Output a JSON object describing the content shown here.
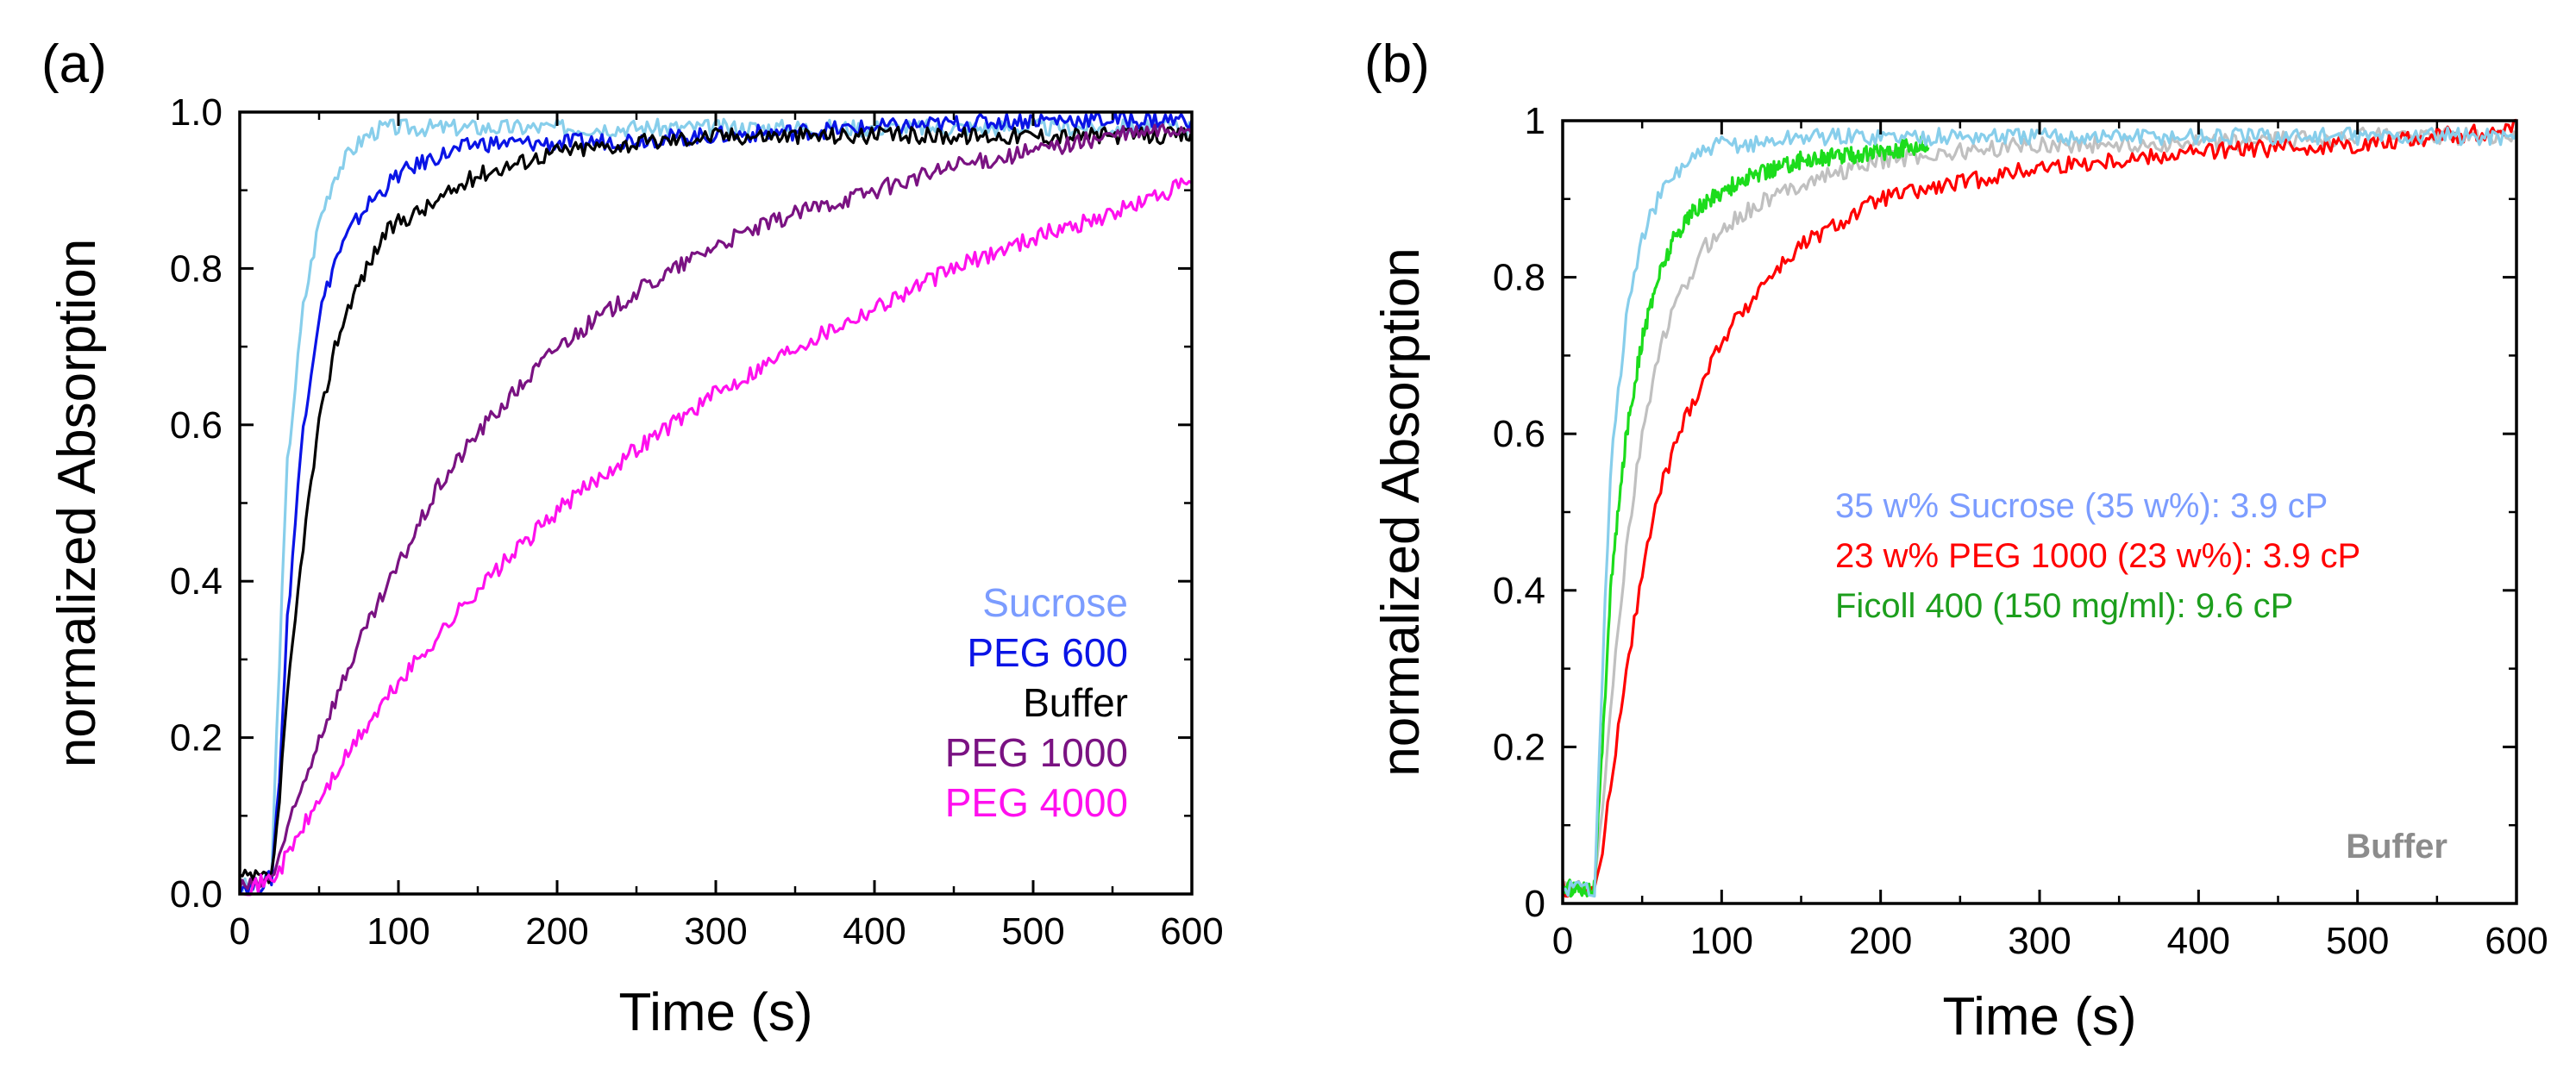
{
  "chart_data": [
    {
      "panel_label": "(a)",
      "type": "line",
      "xlabel": "Time (s)",
      "ylabel": "normalized Absorption",
      "xlim": [
        0,
        600
      ],
      "ylim": [
        0,
        1
      ],
      "xticks": [
        0,
        100,
        200,
        300,
        400,
        500,
        600
      ],
      "xtick_labels": [
        "0",
        "100",
        "200",
        "300",
        "400",
        "500",
        "600"
      ],
      "yticks": [
        0,
        0.2,
        0.4,
        0.6,
        0.8,
        1.0
      ],
      "ytick_labels": [
        "0.0",
        "0.2",
        "0.4",
        "0.6",
        "0.8",
        "1.0"
      ],
      "legend_position": "bottom-right",
      "series": [
        {
          "name": "Sucrose",
          "color": "#87CEEB",
          "legend_color": "#7b9cff",
          "x": [
            0,
            10,
            20,
            25,
            30,
            40,
            50,
            60,
            70,
            80,
            90,
            100,
            120,
            150,
            200,
            300,
            400,
            500,
            600
          ],
          "y": [
            0.01,
            0.01,
            0.02,
            0.3,
            0.55,
            0.75,
            0.86,
            0.92,
            0.95,
            0.97,
            0.98,
            0.98,
            0.98,
            0.98,
            0.98,
            0.98,
            0.98,
            0.98,
            0.98
          ]
        },
        {
          "name": "PEG 600",
          "color": "#0a14e6",
          "legend_color": "#0a14e6",
          "x": [
            0,
            10,
            20,
            25,
            30,
            40,
            50,
            60,
            70,
            80,
            90,
            100,
            120,
            150,
            200,
            300,
            400,
            500,
            600
          ],
          "y": [
            0.01,
            0.01,
            0.02,
            0.15,
            0.35,
            0.6,
            0.74,
            0.81,
            0.85,
            0.88,
            0.9,
            0.92,
            0.94,
            0.96,
            0.96,
            0.97,
            0.98,
            0.99,
            0.99
          ]
        },
        {
          "name": "Buffer",
          "color": "#000000",
          "legend_color": "#000000",
          "x": [
            0,
            10,
            20,
            25,
            30,
            40,
            50,
            60,
            70,
            80,
            90,
            100,
            120,
            150,
            200,
            250,
            300,
            400,
            500,
            600
          ],
          "y": [
            0.02,
            0.02,
            0.02,
            0.12,
            0.25,
            0.45,
            0.6,
            0.7,
            0.76,
            0.8,
            0.84,
            0.86,
            0.88,
            0.92,
            0.95,
            0.96,
            0.97,
            0.97,
            0.97,
            0.97
          ]
        },
        {
          "name": "PEG 1000",
          "color": "#7a1282",
          "legend_color": "#7a1282",
          "x": [
            0,
            10,
            20,
            25,
            30,
            50,
            75,
            100,
            125,
            150,
            200,
            250,
            300,
            350,
            400,
            450,
            500,
            550,
            600
          ],
          "y": [
            0.01,
            0.01,
            0.02,
            0.05,
            0.08,
            0.2,
            0.32,
            0.42,
            0.52,
            0.59,
            0.7,
            0.77,
            0.83,
            0.87,
            0.9,
            0.93,
            0.95,
            0.97,
            0.98
          ]
        },
        {
          "name": "PEG 4000",
          "color": "#ff10ee",
          "legend_color": "#ff10ee",
          "x": [
            0,
            10,
            20,
            25,
            30,
            50,
            75,
            100,
            150,
            200,
            250,
            300,
            350,
            400,
            450,
            500,
            550,
            600
          ],
          "y": [
            0.01,
            0.01,
            0.02,
            0.03,
            0.05,
            0.12,
            0.2,
            0.27,
            0.39,
            0.49,
            0.57,
            0.64,
            0.7,
            0.75,
            0.8,
            0.84,
            0.87,
            0.91
          ]
        }
      ]
    },
    {
      "panel_label": "(b)",
      "type": "line",
      "xlabel": "Time (s)",
      "ylabel": "normalized Absorption",
      "xlim": [
        0,
        600
      ],
      "ylim": [
        0,
        1
      ],
      "xticks": [
        0,
        100,
        200,
        300,
        400,
        500,
        600
      ],
      "xtick_labels": [
        "0",
        "100",
        "200",
        "300",
        "400",
        "500",
        "600"
      ],
      "yticks": [
        0,
        0.2,
        0.4,
        0.6,
        0.8,
        1
      ],
      "ytick_labels": [
        "0",
        "0.2",
        "0.4",
        "0.6",
        "0.8",
        "1"
      ],
      "legend_position": "center-right",
      "series": [
        {
          "name": "Buffer",
          "color": "#c0c0c0",
          "legend_color": "#8c8c8c",
          "x": [
            0,
            10,
            20,
            25,
            30,
            40,
            50,
            60,
            70,
            80,
            90,
            100,
            120,
            150,
            200,
            250,
            300,
            400,
            500,
            600
          ],
          "y": [
            0.02,
            0.02,
            0.02,
            0.12,
            0.25,
            0.45,
            0.6,
            0.7,
            0.76,
            0.8,
            0.84,
            0.86,
            0.89,
            0.92,
            0.95,
            0.96,
            0.97,
            0.97,
            0.98,
            0.98
          ]
        },
        {
          "name": "23 w% PEG 1000 (23 w%): 3.9 cP",
          "color": "#ff0000",
          "legend_color": "#ff0000",
          "x": [
            0,
            10,
            20,
            25,
            30,
            40,
            50,
            60,
            75,
            100,
            125,
            150,
            200,
            250,
            300,
            350,
            400,
            500,
            600
          ],
          "y": [
            0.02,
            0.02,
            0.02,
            0.06,
            0.15,
            0.3,
            0.42,
            0.52,
            0.61,
            0.72,
            0.79,
            0.84,
            0.9,
            0.92,
            0.94,
            0.95,
            0.96,
            0.97,
            0.99
          ]
        },
        {
          "name": "Ficoll 400 (150 mg/ml): 9.6 cP",
          "color": "#1cdc1c",
          "legend_color": "#1c9e1c",
          "x": [
            0,
            10,
            20,
            25,
            30,
            40,
            50,
            60,
            70,
            80,
            100,
            120,
            150,
            200,
            230
          ],
          "y": [
            0.02,
            0.02,
            0.02,
            0.2,
            0.4,
            0.6,
            0.72,
            0.8,
            0.85,
            0.88,
            0.91,
            0.93,
            0.95,
            0.96,
            0.97
          ]
        },
        {
          "name": "35 w% Sucrose (35 w%): 3.9 cP",
          "color": "#87CEEB",
          "legend_color": "#7b9cff",
          "x": [
            0,
            10,
            20,
            25,
            30,
            40,
            50,
            60,
            70,
            80,
            90,
            100,
            120,
            150,
            200,
            300,
            400,
            500,
            600
          ],
          "y": [
            0.02,
            0.02,
            0.02,
            0.3,
            0.55,
            0.75,
            0.85,
            0.9,
            0.93,
            0.95,
            0.96,
            0.97,
            0.97,
            0.98,
            0.98,
            0.98,
            0.98,
            0.98,
            0.98
          ]
        }
      ],
      "legend": [
        {
          "text": "35 w% Sucrose (35 w%): 3.9 cP",
          "color": "#7b9cff"
        },
        {
          "text": "23 w% PEG 1000 (23 w%): 3.9 cP",
          "color": "#ff0000"
        },
        {
          "text": "Ficoll 400 (150 mg/ml): 9.6 cP",
          "color": "#1c9e1c"
        }
      ],
      "annotation": {
        "text": "Buffer",
        "color": "#8c8c8c"
      }
    }
  ]
}
